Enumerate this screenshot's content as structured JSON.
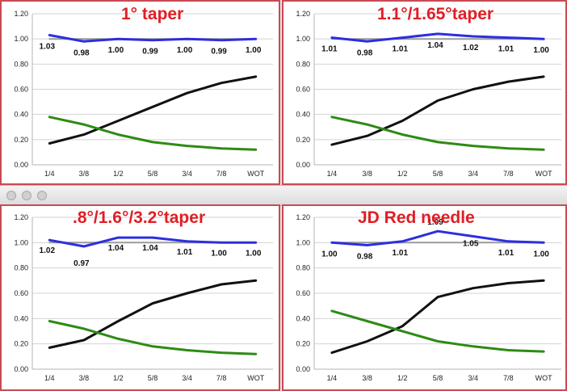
{
  "window": {
    "colors": {
      "frame": "#c94a55",
      "title": "#e01e25",
      "blue": "#2b2fe0",
      "black": "#111111",
      "green": "#2e8b14",
      "gray": "#9a9a9a"
    }
  },
  "chart_data": [
    {
      "type": "line",
      "title": "1° taper",
      "categories": [
        "1/4",
        "3/8",
        "1/2",
        "5/8",
        "3/4",
        "7/8",
        "WOT"
      ],
      "ylim": [
        0,
        1.2
      ],
      "yticks": [
        "0.00",
        "0.20",
        "0.40",
        "0.60",
        "0.80",
        "1.00",
        "1.20"
      ],
      "grid": true,
      "legend": "none",
      "series": [
        {
          "color": "#2b2fe0",
          "values": [
            1.03,
            0.98,
            1.0,
            0.99,
            1.0,
            0.99,
            1.0
          ],
          "labels": [
            "1.03",
            "0.98",
            "1.00",
            "0.99",
            "1.00",
            "0.99",
            "1.00"
          ]
        },
        {
          "color": "#9a9a9a",
          "values": [
            1.0,
            1.0,
            1.0,
            1.0,
            1.0,
            1.0,
            1.0
          ]
        },
        {
          "color": "#111111",
          "values": [
            0.17,
            0.24,
            0.35,
            0.46,
            0.57,
            0.65,
            0.7
          ]
        },
        {
          "color": "#2e8b14",
          "values": [
            0.38,
            0.32,
            0.24,
            0.18,
            0.15,
            0.13,
            0.12
          ]
        }
      ]
    },
    {
      "type": "line",
      "title": "1.1°/1.65°taper",
      "categories": [
        "1/4",
        "3/8",
        "1/2",
        "5/8",
        "3/4",
        "7/8",
        "WOT"
      ],
      "ylim": [
        0,
        1.2
      ],
      "yticks": [
        "0.00",
        "0.20",
        "0.40",
        "0.60",
        "0.80",
        "1.00",
        "1.20"
      ],
      "grid": true,
      "legend": "none",
      "series": [
        {
          "color": "#2b2fe0",
          "values": [
            1.01,
            0.98,
            1.01,
            1.04,
            1.02,
            1.01,
            1.0
          ],
          "labels": [
            "1.01",
            "0.98",
            "1.01",
            "1.04",
            "1.02",
            "1.01",
            "1.00"
          ]
        },
        {
          "color": "#9a9a9a",
          "values": [
            1.0,
            1.0,
            1.0,
            1.0,
            1.0,
            1.0,
            1.0
          ]
        },
        {
          "color": "#111111",
          "values": [
            0.16,
            0.23,
            0.35,
            0.51,
            0.6,
            0.66,
            0.7
          ]
        },
        {
          "color": "#2e8b14",
          "values": [
            0.38,
            0.32,
            0.24,
            0.18,
            0.15,
            0.13,
            0.12
          ]
        }
      ]
    },
    {
      "type": "line",
      "title": ".8°/1.6°/3.2°taper",
      "categories": [
        "1/4",
        "3/8",
        "1/2",
        "5/8",
        "3/4",
        "7/8",
        "WOT"
      ],
      "ylim": [
        0,
        1.2
      ],
      "yticks": [
        "0.00",
        "0.20",
        "0.40",
        "0.60",
        "0.80",
        "1.00",
        "1.20"
      ],
      "grid": true,
      "legend": "none",
      "series": [
        {
          "color": "#2b2fe0",
          "values": [
            1.02,
            0.97,
            1.04,
            1.04,
            1.01,
            1.0,
            1.0
          ],
          "labels": [
            "1.02",
            "0.97",
            "1.04",
            "1.04",
            "1.01",
            "1.00",
            "1.00"
          ]
        },
        {
          "color": "#9a9a9a",
          "values": [
            1.0,
            1.0,
            1.0,
            1.0,
            1.0,
            1.0,
            1.0
          ]
        },
        {
          "color": "#111111",
          "values": [
            0.17,
            0.23,
            0.38,
            0.52,
            0.6,
            0.67,
            0.7
          ]
        },
        {
          "color": "#2e8b14",
          "values": [
            0.38,
            0.32,
            0.24,
            0.18,
            0.15,
            0.13,
            0.12
          ]
        }
      ]
    },
    {
      "type": "line",
      "title": "JD Red needle",
      "categories": [
        "1/4",
        "3/8",
        "1/2",
        "5/8",
        "3/4",
        "7/8",
        "WOT"
      ],
      "ylim": [
        0,
        1.2
      ],
      "yticks": [
        "0.00",
        "0.20",
        "0.40",
        "0.60",
        "0.80",
        "1.00",
        "1.20"
      ],
      "grid": true,
      "legend": "none",
      "series": [
        {
          "color": "#2b2fe0",
          "values": [
            1.0,
            0.98,
            1.01,
            1.09,
            1.05,
            1.01,
            1.0
          ],
          "labels": [
            "1.00",
            "0.98",
            "1.01",
            "1.09",
            "1.05",
            "1.01",
            "1.00"
          ]
        },
        {
          "color": "#9a9a9a",
          "values": [
            1.0,
            1.0,
            1.0,
            1.0,
            1.0,
            1.0,
            1.0
          ]
        },
        {
          "color": "#111111",
          "values": [
            0.13,
            0.22,
            0.34,
            0.57,
            0.64,
            0.68,
            0.7
          ]
        },
        {
          "color": "#2e8b14",
          "values": [
            0.46,
            0.38,
            0.3,
            0.22,
            0.18,
            0.15,
            0.14
          ]
        }
      ]
    }
  ]
}
